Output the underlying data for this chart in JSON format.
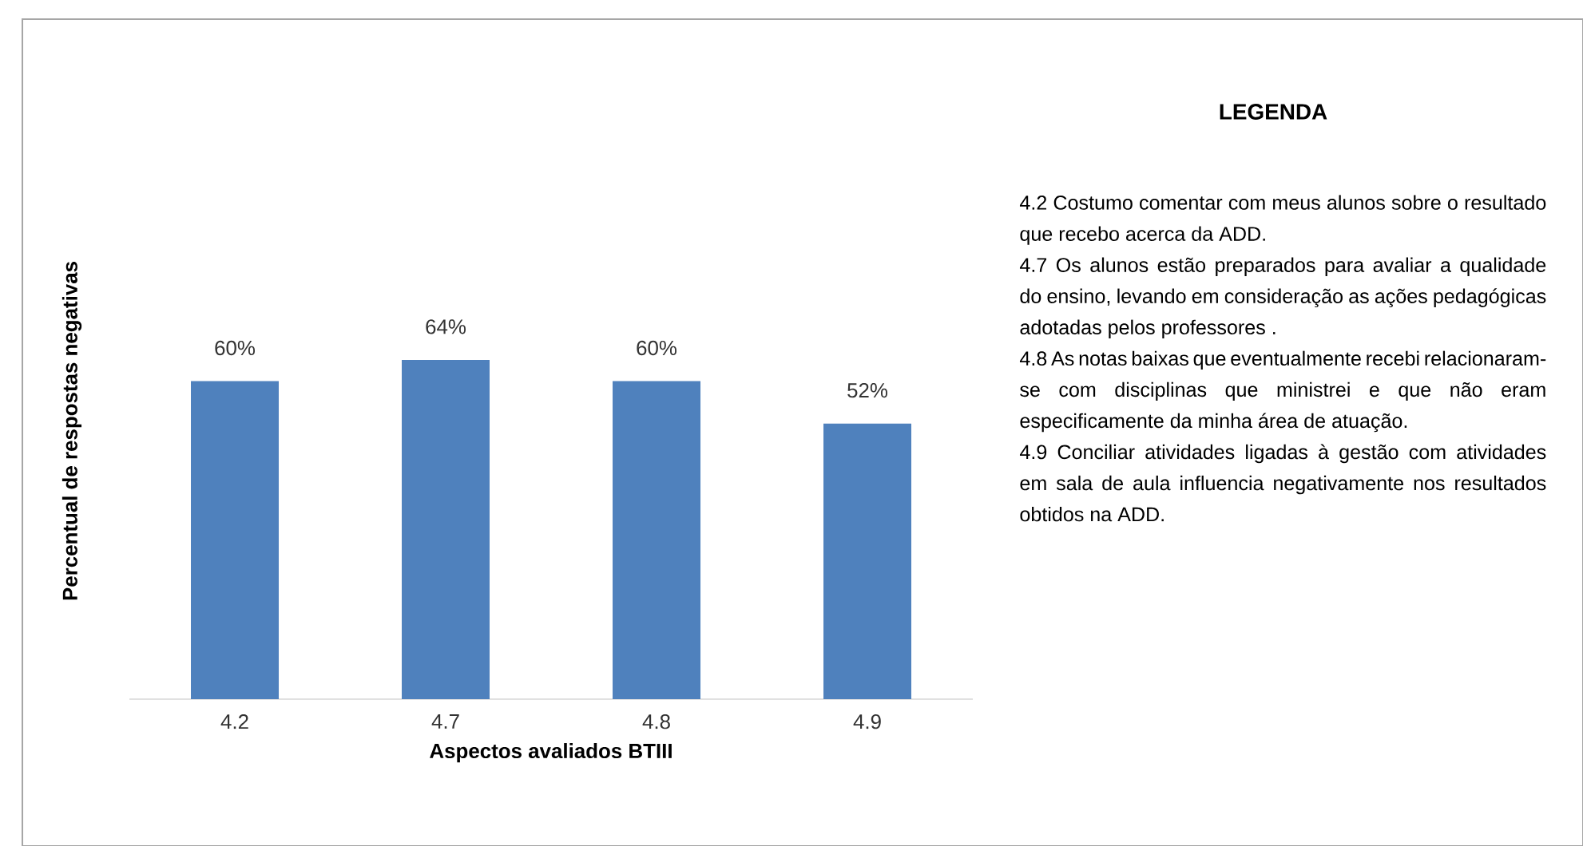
{
  "chart_data": {
    "type": "bar",
    "xlabel": "Aspectos avaliados BTIII",
    "ylabel": "Percentual de respostas negativas",
    "categories": [
      "4.2",
      "4.7",
      "4.8",
      "4.9"
    ],
    "values": [
      60,
      64,
      60,
      52
    ],
    "value_labels": [
      "60%",
      "64%",
      "60%",
      "52%"
    ],
    "color": "#4f81bd",
    "annotations": [
      "LEGENDA",
      "4.2 Costumo comentar com meus alunos sobre o resultado que recebo acerca da ADD.",
      "4.7 Os alunos estão preparados para avaliar a qualidade do ensino, levando em consideração as ações pedagógicas adotadas pelos professores .",
      "4.8 As notas baixas que eventualmente recebi relacionaram-se com disciplinas que ministrei e que não eram especificamente da minha área de atuação.",
      "4.9 Conciliar atividades ligadas à gestão com atividades em sala de aula influencia negativamente nos resultados obtidos na ADD."
    ]
  }
}
